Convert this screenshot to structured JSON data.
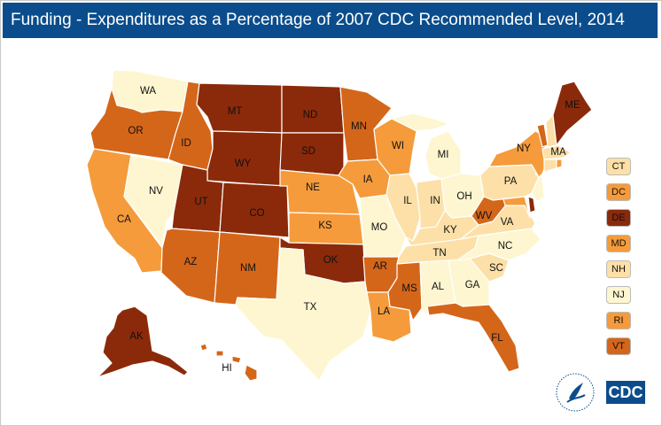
{
  "title": "Funding - Expenditures as a Percentage of 2007 CDC Recommended Level, 2014",
  "colors": {
    "lightest": "#fdf6d0",
    "light": "#fde0a8",
    "medium": "#f59b3b",
    "dark": "#d4661a",
    "darkest": "#8b2a0a",
    "header": "#0b4d8c"
  },
  "states": {
    "WA": "WA",
    "OR": "OR",
    "ID": "ID",
    "MT": "MT",
    "WY": "WY",
    "ND": "ND",
    "SD": "SD",
    "NV": "NV",
    "CA": "CA",
    "UT": "UT",
    "CO": "CO",
    "AZ": "AZ",
    "NM": "NM",
    "NE": "NE",
    "KS": "KS",
    "OK": "OK",
    "TX": "TX",
    "MN": "MN",
    "IA": "IA",
    "MO": "MO",
    "AR": "AR",
    "LA": "LA",
    "WI": "WI",
    "IL": "IL",
    "MI": "MI",
    "IN": "IN",
    "OH": "OH",
    "KY": "KY",
    "TN": "TN",
    "MS": "MS",
    "AL": "AL",
    "GA": "GA",
    "FL": "FL",
    "SC": "SC",
    "NC": "NC",
    "VA": "VA",
    "WV": "WV",
    "PA": "PA",
    "NY": "NY",
    "ME": "ME",
    "MA": "MA",
    "AK": "AK",
    "HI": "HI"
  },
  "legend_small_states": [
    "CT",
    "DC",
    "DE",
    "MD",
    "NH",
    "NJ",
    "RI",
    "VT"
  ],
  "legend_small_state_levels": [
    "light",
    "medium",
    "darkest",
    "medium",
    "light",
    "lightest",
    "medium",
    "dark"
  ],
  "logos": {
    "agency_logo_text": "CDC"
  }
}
